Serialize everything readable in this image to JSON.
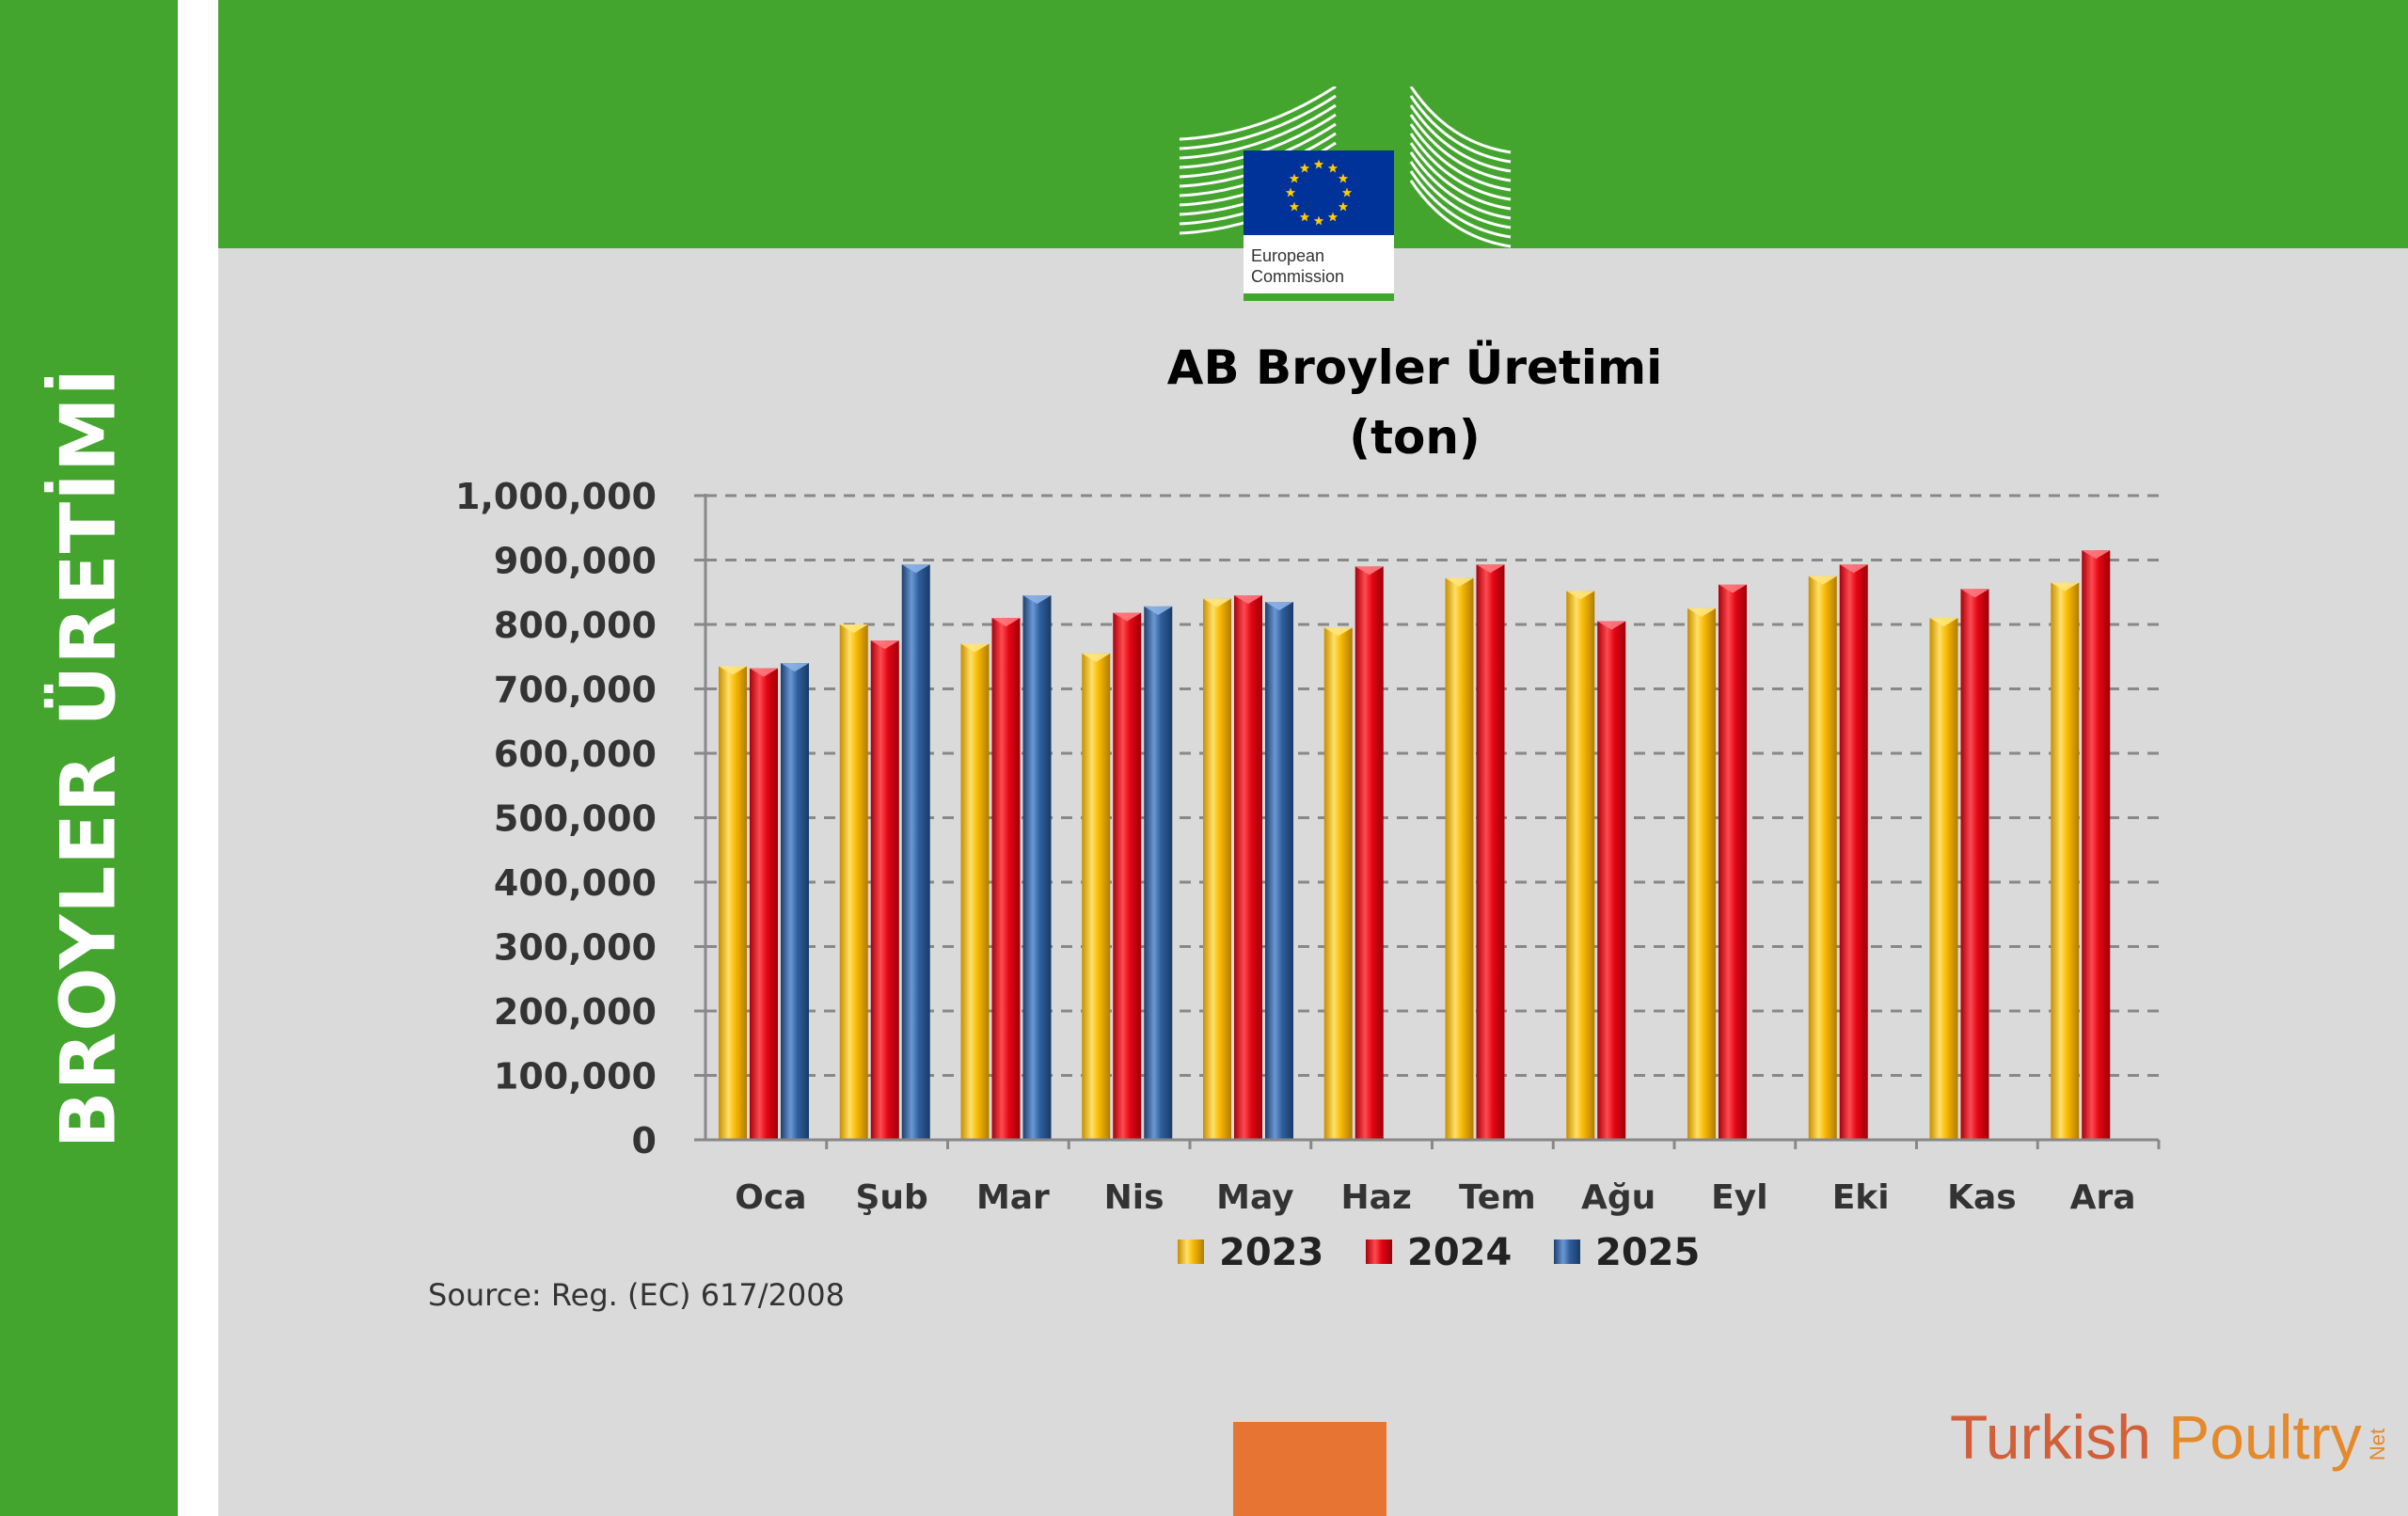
{
  "side_title": "BROYLER ÜRETİMİ",
  "logo": {
    "line1": "European",
    "line2": "Commission",
    "icon": "eu-flag-icon"
  },
  "source": "Source: Reg. (EC) 617/2008",
  "brand": {
    "part1": "Turkish ",
    "part2": "Poultry",
    "part3": "Net"
  },
  "colors": {
    "green": "#44a52e",
    "orange": "#e87434",
    "series_2023": "#f7b800",
    "series_2024": "#e30613",
    "series_2025": "#2e5f9c"
  },
  "chart_data": {
    "type": "bar",
    "title": "AB Broyler Üretimi",
    "subtitle": "(ton)",
    "categories": [
      "Oca",
      "Şub",
      "Mar",
      "Nis",
      "May",
      "Haz",
      "Tem",
      "Ağu",
      "Eyl",
      "Eki",
      "Kas",
      "Ara"
    ],
    "series": [
      {
        "name": "2023",
        "values": [
          735000,
          800000,
          770000,
          755000,
          840000,
          795000,
          872000,
          852000,
          825000,
          875000,
          810000,
          865000
        ]
      },
      {
        "name": "2024",
        "values": [
          732000,
          775000,
          810000,
          818000,
          845000,
          890000,
          893000,
          805000,
          862000,
          893000,
          855000,
          915000
        ]
      },
      {
        "name": "2025",
        "values": [
          740000,
          893000,
          845000,
          828000,
          835000,
          null,
          null,
          null,
          null,
          null,
          null,
          null
        ]
      }
    ],
    "ylim": [
      0,
      1000000
    ],
    "yticks": [
      "0",
      "100,000",
      "200,000",
      "300,000",
      "400,000",
      "500,000",
      "600,000",
      "700,000",
      "800,000",
      "900,000",
      "1,000,000"
    ],
    "grid": true,
    "legend": "bottom"
  }
}
